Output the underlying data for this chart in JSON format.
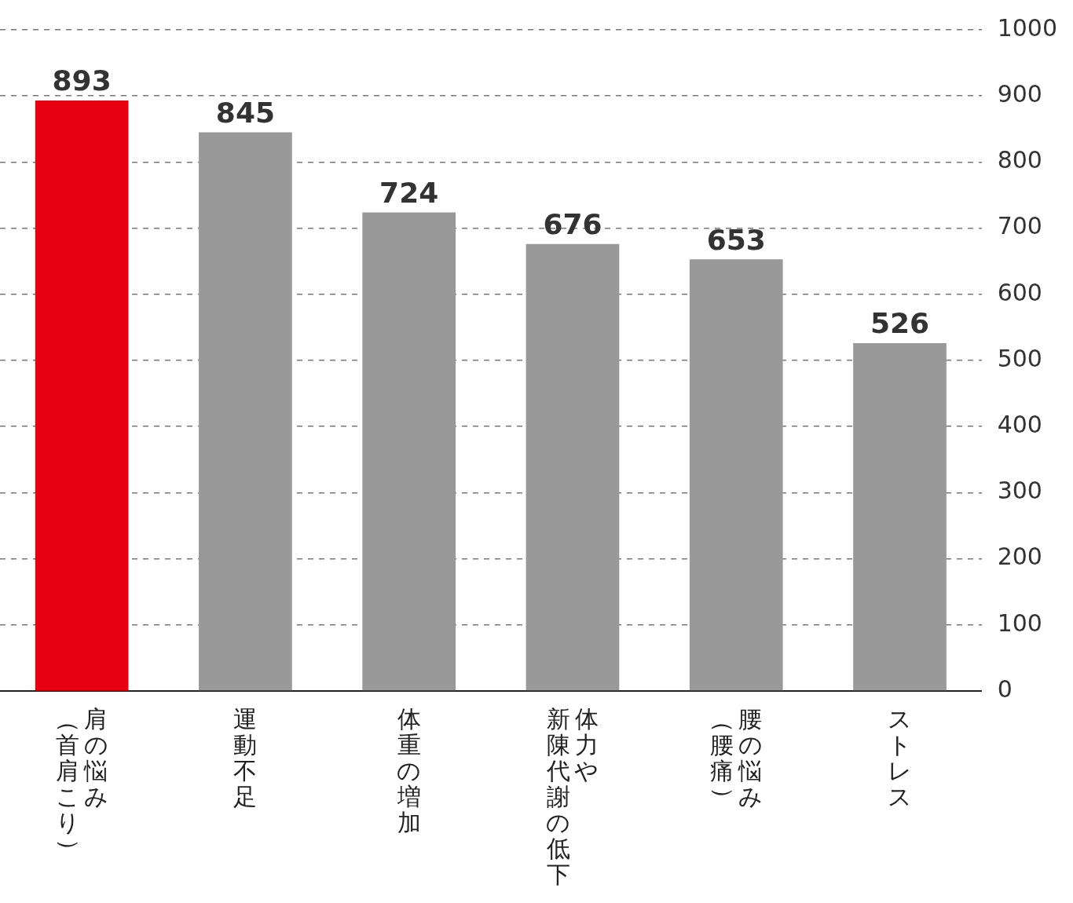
{
  "chart_data": {
    "type": "bar",
    "categories": [
      "肩の悩み（首肩こり）",
      "運動不足",
      "体重の増加",
      "体力や新陳代謝の低下",
      "腰の悩み（腰痛）",
      "ストレス"
    ],
    "values": [
      893,
      845,
      724,
      676,
      653,
      526
    ],
    "colors": [
      "#e60012",
      "#999999",
      "#999999",
      "#999999",
      "#999999",
      "#999999"
    ],
    "ylim": [
      0,
      1000
    ],
    "yticks": [
      0,
      100,
      200,
      300,
      400,
      500,
      600,
      700,
      800,
      900,
      1000
    ],
    "grid": "y",
    "data_labels": true
  }
}
